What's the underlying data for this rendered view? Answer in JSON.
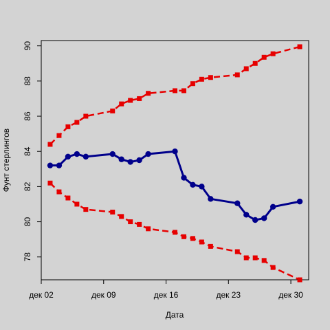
{
  "chart_data": {
    "type": "line",
    "title": "",
    "xlabel": "Дата",
    "ylabel": "Фунт стерлингов",
    "x_ticks": [
      "дек 02",
      "дек 09",
      "дек 16",
      "дек 23",
      "дек 30"
    ],
    "x_tick_dates": [
      "2019-12-02",
      "2019-12-09",
      "2019-12-16",
      "2019-12-23",
      "2019-12-30"
    ],
    "y_ticks": [
      78,
      80,
      82,
      84,
      86,
      88,
      90
    ],
    "xlim": [
      "2019-12-02",
      "2020-01-01"
    ],
    "ylim": [
      76.7,
      90.3
    ],
    "grid": false,
    "legend": "none",
    "x": [
      "2019-12-03",
      "2019-12-04",
      "2019-12-05",
      "2019-12-06",
      "2019-12-07",
      "2019-12-10",
      "2019-12-11",
      "2019-12-12",
      "2019-12-13",
      "2019-12-14",
      "2019-12-17",
      "2019-12-18",
      "2019-12-19",
      "2019-12-20",
      "2019-12-21",
      "2019-12-24",
      "2019-12-25",
      "2019-12-26",
      "2019-12-27",
      "2019-12-28",
      "2019-12-31"
    ],
    "series": [
      {
        "values": [
          83.2,
          83.2,
          83.7,
          83.85,
          83.7,
          83.85,
          83.55,
          83.4,
          83.5,
          83.85,
          84.0,
          82.5,
          82.1,
          82.0,
          81.3,
          81.05,
          80.4,
          80.1,
          80.2,
          80.85,
          81.15
        ],
        "color": "#00008b",
        "style": "solid"
      },
      {
        "values": [
          84.4,
          84.9,
          85.4,
          85.65,
          86.0,
          86.3,
          86.7,
          86.9,
          87.0,
          87.3,
          87.45,
          87.45,
          87.85,
          88.1,
          88.2,
          88.35,
          88.7,
          89.0,
          89.35,
          89.55,
          89.95
        ],
        "color": "#e60000",
        "style": "dashed"
      },
      {
        "values": [
          82.2,
          81.7,
          81.35,
          81.0,
          80.7,
          80.55,
          80.3,
          80.0,
          79.85,
          79.6,
          79.4,
          79.15,
          79.05,
          78.85,
          78.6,
          78.3,
          77.95,
          77.95,
          77.8,
          77.4,
          76.7
        ],
        "color": "#e60000",
        "style": "dashed"
      }
    ]
  }
}
